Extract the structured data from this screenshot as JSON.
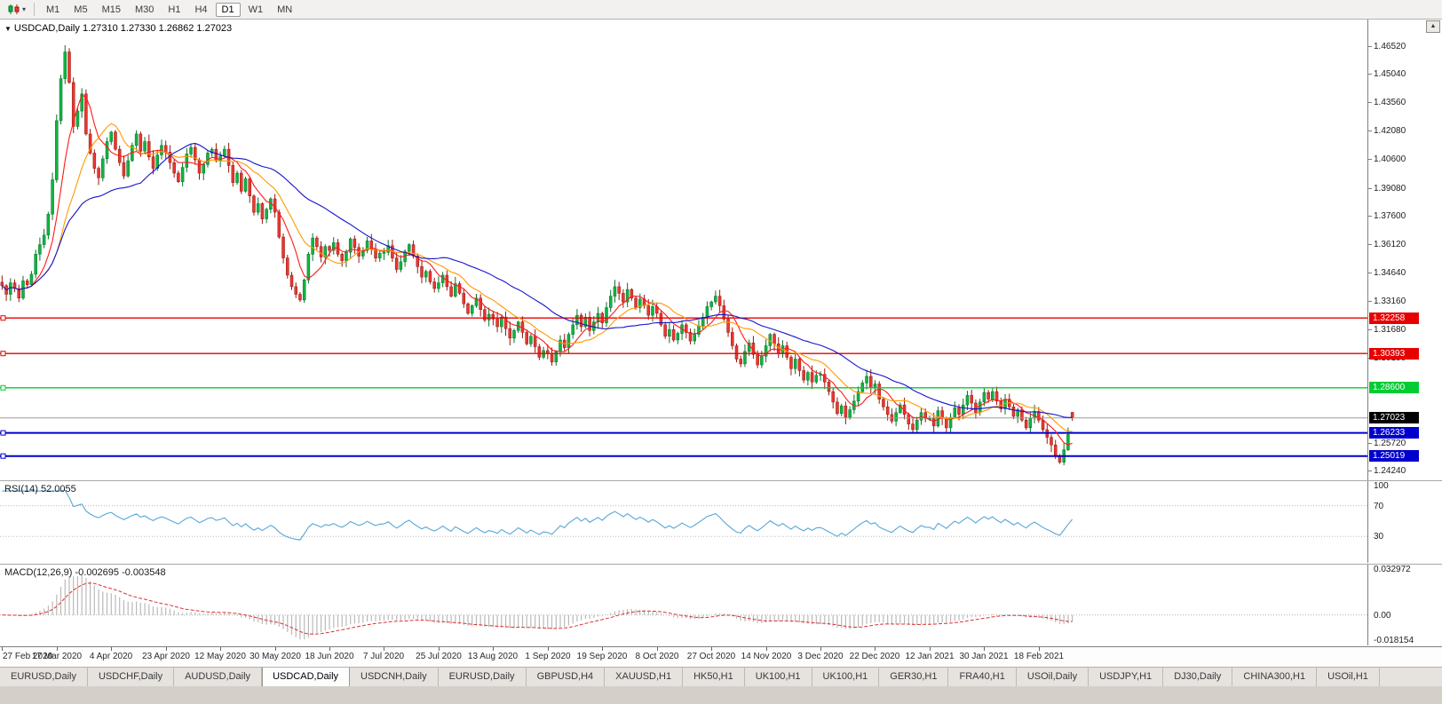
{
  "icons": {
    "chart_type_caret": "▾",
    "symbol_marker": "▼",
    "scroll_up": "▲"
  },
  "toolbar": {
    "timeframes": [
      "M1",
      "M5",
      "M15",
      "M30",
      "H1",
      "H4",
      "D1",
      "W1",
      "MN"
    ],
    "active": "D1"
  },
  "chart": {
    "symbol_period": "USDCAD,Daily",
    "ohlc_text": "1.27310 1.27330 1.26862 1.27023"
  },
  "rsi": {
    "label": "RSI(14)",
    "value": "52.0055"
  },
  "macd": {
    "label": "MACD(12,26,9)",
    "value": "-0.002695 -0.003548"
  },
  "tabs": {
    "items": [
      "EURUSD,Daily",
      "USDCHF,Daily",
      "AUDUSD,Daily",
      "USDCAD,Daily",
      "USDCNH,Daily",
      "EURUSD,Daily",
      "GBPUSD,H4",
      "XAUUSD,H1",
      "HK50,H1",
      "UK100,H1",
      "UK100,H1",
      "GER30,H1",
      "FRA40,H1",
      "USOil,Daily",
      "USDJPY,H1",
      "DJ30,Daily",
      "CHINA300,H1",
      "USOil,H1"
    ],
    "active_index": 3
  },
  "chart_data": {
    "type": "candlestick",
    "symbol": "USDCAD",
    "period": "Daily",
    "last_bar": {
      "open": 1.2731,
      "high": 1.2733,
      "low": 1.26862,
      "close": 1.27023
    },
    "y_range": [
      1.2375,
      1.479
    ],
    "y_axis_labels": [
      "1.46520",
      "1.45040",
      "1.43560",
      "1.42080",
      "1.40600",
      "1.39080",
      "1.37600",
      "1.36120",
      "1.34640",
      "1.33160",
      "1.31680",
      "1.30190",
      "1.25720",
      "1.24240"
    ],
    "x_labels": [
      "27 Feb 2020",
      "17 Mar 2020",
      "4 Apr 2020",
      "23 Apr 2020",
      "12 May 2020",
      "30 May 2020",
      "18 Jun 2020",
      "7 Jul 2020",
      "25 Jul 2020",
      "13 Aug 2020",
      "1 Sep 2020",
      "19 Sep 2020",
      "8 Oct 2020",
      "27 Oct 2020",
      "14 Nov 2020",
      "3 Dec 2020",
      "22 Dec 2020",
      "12 Jan 2021",
      "30 Jan 2021",
      "18 Feb 2021"
    ],
    "bars_per_label": 13,
    "closes": [
      1.3395,
      1.335,
      1.341,
      1.338,
      1.333,
      1.342,
      1.34,
      1.3455,
      1.356,
      1.361,
      1.366,
      1.377,
      1.395,
      1.426,
      1.448,
      1.462,
      1.446,
      1.423,
      1.431,
      1.44,
      1.419,
      1.409,
      1.401,
      1.396,
      1.406,
      1.415,
      1.42,
      1.411,
      1.404,
      1.397,
      1.405,
      1.413,
      1.419,
      1.41,
      1.415,
      1.407,
      1.401,
      1.408,
      1.413,
      1.4095,
      1.404,
      1.3985,
      1.394,
      1.4015,
      1.4085,
      1.412,
      1.4055,
      1.3985,
      1.403,
      1.409,
      1.411,
      1.405,
      1.4075,
      1.411,
      1.4025,
      1.3935,
      1.3985,
      1.389,
      1.3955,
      1.3865,
      1.378,
      1.3825,
      1.3745,
      1.3795,
      1.385,
      1.378,
      1.365,
      1.354,
      1.345,
      1.339,
      1.335,
      1.332,
      1.3425,
      1.356,
      1.3645,
      1.36,
      1.3545,
      1.36,
      1.358,
      1.362,
      1.356,
      1.3525,
      1.357,
      1.364,
      1.3595,
      1.355,
      1.358,
      1.363,
      1.3585,
      1.354,
      1.3565,
      1.357,
      1.3605,
      1.354,
      1.348,
      1.352,
      1.3575,
      1.361,
      1.355,
      1.3495,
      1.344,
      1.347,
      1.3415,
      1.338,
      1.341,
      1.345,
      1.339,
      1.334,
      1.3405,
      1.3355,
      1.33,
      1.325,
      1.329,
      1.333,
      1.327,
      1.3215,
      1.3245,
      1.322,
      1.318,
      1.323,
      1.317,
      1.312,
      1.316,
      1.3205,
      1.315,
      1.309,
      1.313,
      1.3075,
      1.302,
      1.3055,
      1.304,
      1.2995,
      1.305,
      1.311,
      1.307,
      1.314,
      1.319,
      1.324,
      1.318,
      1.323,
      1.316,
      1.3205,
      1.325,
      1.32,
      1.328,
      1.334,
      1.339,
      1.3355,
      1.331,
      1.3375,
      1.333,
      1.328,
      1.3325,
      1.329,
      1.324,
      1.3285,
      1.325,
      1.319,
      1.313,
      1.3165,
      1.311,
      1.3145,
      1.319,
      1.315,
      1.3105,
      1.314,
      1.3185,
      1.323,
      1.3285,
      1.331,
      1.334,
      1.329,
      1.322,
      1.315,
      1.308,
      1.301,
      1.2985,
      1.305,
      1.3095,
      1.3035,
      1.298,
      1.3025,
      1.308,
      1.314,
      1.309,
      1.304,
      1.308,
      1.302,
      1.296,
      1.301,
      1.295,
      1.29,
      1.294,
      1.289,
      1.2925,
      1.293,
      1.289,
      1.284,
      1.2785,
      1.2725,
      1.2765,
      1.2705,
      1.2745,
      1.279,
      1.284,
      1.2885,
      1.292,
      1.286,
      1.288,
      1.28,
      1.276,
      1.272,
      1.2685,
      1.273,
      1.277,
      1.272,
      1.267,
      1.264,
      1.269,
      1.273,
      1.27,
      1.27,
      1.266,
      1.274,
      1.27,
      1.265,
      1.2705,
      1.2755,
      1.272,
      1.277,
      1.282,
      1.278,
      1.273,
      1.2785,
      1.2835,
      1.28,
      1.284,
      1.279,
      1.275,
      1.28,
      1.276,
      1.271,
      1.2745,
      1.269,
      1.265,
      1.27,
      1.2735,
      1.269,
      1.264,
      1.26,
      1.256,
      1.2505,
      1.247,
      1.2535,
      1.2615,
      1.2702
    ],
    "colors": {
      "bull": "#0fb540",
      "bull_border": "#07712a",
      "bear": "#e6392f",
      "bear_border": "#9a1510",
      "background": "#ffffff"
    },
    "moving_averages": [
      {
        "period": 7,
        "color": "#ff1a1a"
      },
      {
        "period": 14,
        "color": "#ff9a00"
      },
      {
        "period": 34,
        "color": "#1414cc"
      }
    ],
    "horizontal_lines": [
      {
        "price": 1.32258,
        "label": "1.32258",
        "color": "#e60000",
        "width": 1.4
      },
      {
        "price": 1.30393,
        "label": "1.30393",
        "color": "#e60000",
        "width": 1.4
      },
      {
        "price": 1.286,
        "label": "1.28600",
        "color": "#00cc33",
        "width": 1.4
      },
      {
        "price": 1.26233,
        "label": "1.26233",
        "color": "#0000cc",
        "width": 2
      },
      {
        "price": 1.25019,
        "label": "1.25019",
        "color": "#0000cc",
        "width": 2
      }
    ],
    "bid_line": {
      "price": 1.27023,
      "label": "1.27023",
      "color": "#9a9a9a",
      "badge_color": "#000000"
    },
    "rsi": {
      "period": 14,
      "current": 52.0055,
      "line_color": "#58a6d8",
      "range": [
        0,
        100
      ],
      "levels": [
        {
          "value": 100,
          "label": "100"
        },
        {
          "value": 70,
          "label": "70"
        },
        {
          "value": 30,
          "label": "30"
        }
      ]
    },
    "macd": {
      "fast": 12,
      "slow": 26,
      "signal_period": 9,
      "current_main": -0.002695,
      "current_signal": -0.003548,
      "histogram_color": "#b9b9b9",
      "signal_color": "#e03030",
      "range": [
        -0.018154,
        0.032972
      ],
      "levels": [
        {
          "value": 0.032972,
          "label": "0.032972"
        },
        {
          "value": 0,
          "label": "0.00"
        },
        {
          "value": -0.018154,
          "label": "-0.018154"
        }
      ]
    }
  }
}
